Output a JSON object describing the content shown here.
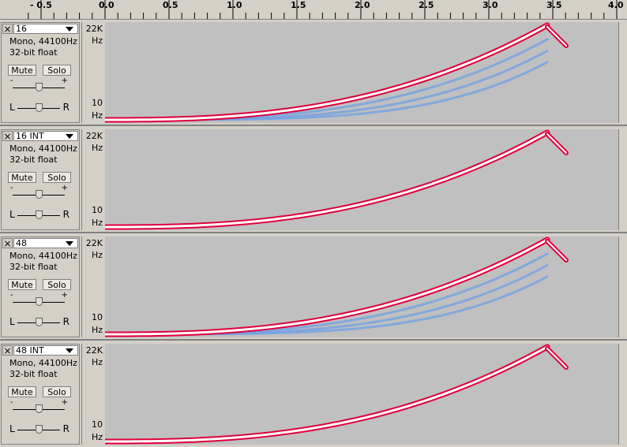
{
  "ruler": {
    "labels": [
      "- 0.5",
      "0.0",
      "0.5",
      "1.0",
      "1.5",
      "2.0",
      "2.5",
      "3.0",
      "3.5",
      "4.0"
    ]
  },
  "tracks": [
    {
      "name": "16",
      "rate": "Mono, 44100Hz",
      "format": "32-bit float",
      "mute": "Mute",
      "solo": "Solo",
      "gain_minus": "-",
      "gain_plus": "+",
      "pan_left": "L",
      "pan_right": "R",
      "vtop": "22K",
      "vtop_unit": "Hz",
      "vbottom": "10",
      "vbottom_unit": "Hz",
      "close": "×",
      "gain_level": 0.5,
      "pan_level": 0.5,
      "aliasing": true
    },
    {
      "name": "16 INT",
      "rate": "Mono, 44100Hz",
      "format": "32-bit float",
      "mute": "Mute",
      "solo": "Solo",
      "gain_minus": "-",
      "gain_plus": "+",
      "pan_left": "L",
      "pan_right": "R",
      "vtop": "22K",
      "vtop_unit": "Hz",
      "vbottom": "10",
      "vbottom_unit": "Hz",
      "close": "×",
      "gain_level": 0.5,
      "pan_level": 0.5,
      "aliasing": false
    },
    {
      "name": "48",
      "rate": "Mono, 44100Hz",
      "format": "32-bit float",
      "mute": "Mute",
      "solo": "Solo",
      "gain_minus": "-",
      "gain_plus": "+",
      "pan_left": "L",
      "pan_right": "R",
      "vtop": "22K",
      "vtop_unit": "Hz",
      "vbottom": "10",
      "vbottom_unit": "Hz",
      "close": "×",
      "gain_level": 0.5,
      "pan_level": 0.5,
      "aliasing": true
    },
    {
      "name": "48 INT",
      "rate": "Mono, 44100Hz",
      "format": "32-bit float",
      "mute": "Mute",
      "solo": "Solo",
      "gain_minus": "-",
      "gain_plus": "+",
      "pan_left": "L",
      "pan_right": "R",
      "vtop": "22K",
      "vtop_unit": "Hz",
      "vbottom": "10",
      "vbottom_unit": "Hz",
      "close": "×",
      "gain_level": 0.5,
      "pan_level": 0.5,
      "aliasing": false
    }
  ],
  "colors": {
    "spectrogram_bg": "#c0c0c0",
    "sweep_core": "#ffffff",
    "sweep_edge": "#e0003c",
    "harmonic": "#6a9ee8"
  },
  "icons": {
    "close": "close-icon",
    "dropdown": "chevron-down-icon"
  }
}
